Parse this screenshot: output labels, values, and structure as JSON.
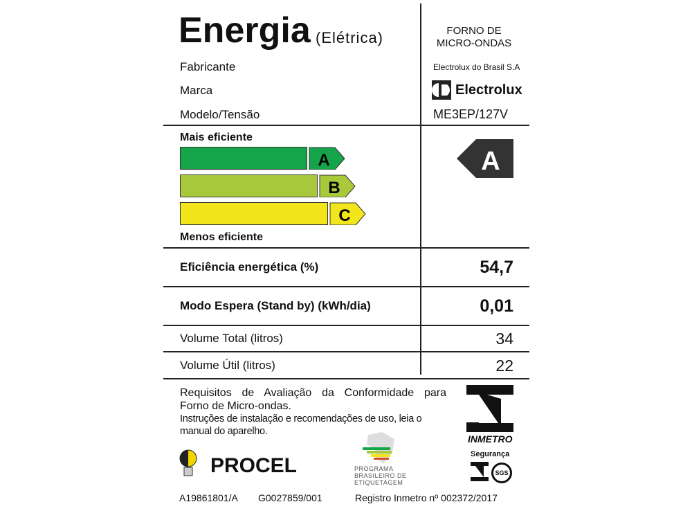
{
  "header": {
    "title": "Energia",
    "subtitle": "(Elétrica)",
    "product": "FORNO DE MICRO-ONDAS"
  },
  "info": [
    {
      "label": "Fabricante",
      "value": "Electrolux do Brasil S.A"
    },
    {
      "label": "Marca",
      "value": "Electrolux"
    },
    {
      "label": "Modelo/Tensão",
      "value": "ME3EP/127V"
    }
  ],
  "scale": {
    "top_label": "Mais eficiente",
    "bottom_label": "Menos eficiente",
    "classes": [
      {
        "letter": "A",
        "color": "#16a44a"
      },
      {
        "letter": "B",
        "color": "#a9c93c"
      },
      {
        "letter": "C",
        "color": "#f2e51b"
      }
    ],
    "rating": "A"
  },
  "rows": [
    {
      "label": "Eficiência energética (%)",
      "value": "54,7"
    },
    {
      "label": "Modo Espera (Stand by) (kWh/dia)",
      "value": "0,01"
    },
    {
      "label": "Volume Total (litros)",
      "value": "34"
    },
    {
      "label": "Volume Útil (litros)",
      "value": "22"
    }
  ],
  "footer": {
    "req_line1": "Requisitos de Avaliação da Conformidade para",
    "req_line2": "Forno de Micro-ondas.",
    "instr_line1": "Instruções de instalação e recomendações de uso, leia o",
    "instr_line2": "manual do aparelho.",
    "procel": "PROCEL",
    "pbe": "PROGRAMA BRASILEIRO DE ETIQUETAGEM",
    "inmetro": "INMETRO",
    "seguranca": "Segurança",
    "sgs": "SGS",
    "code1": "A19861801/A",
    "code2": "G0027859/001",
    "registro": "Registro Inmetro nº 002372/2017"
  }
}
